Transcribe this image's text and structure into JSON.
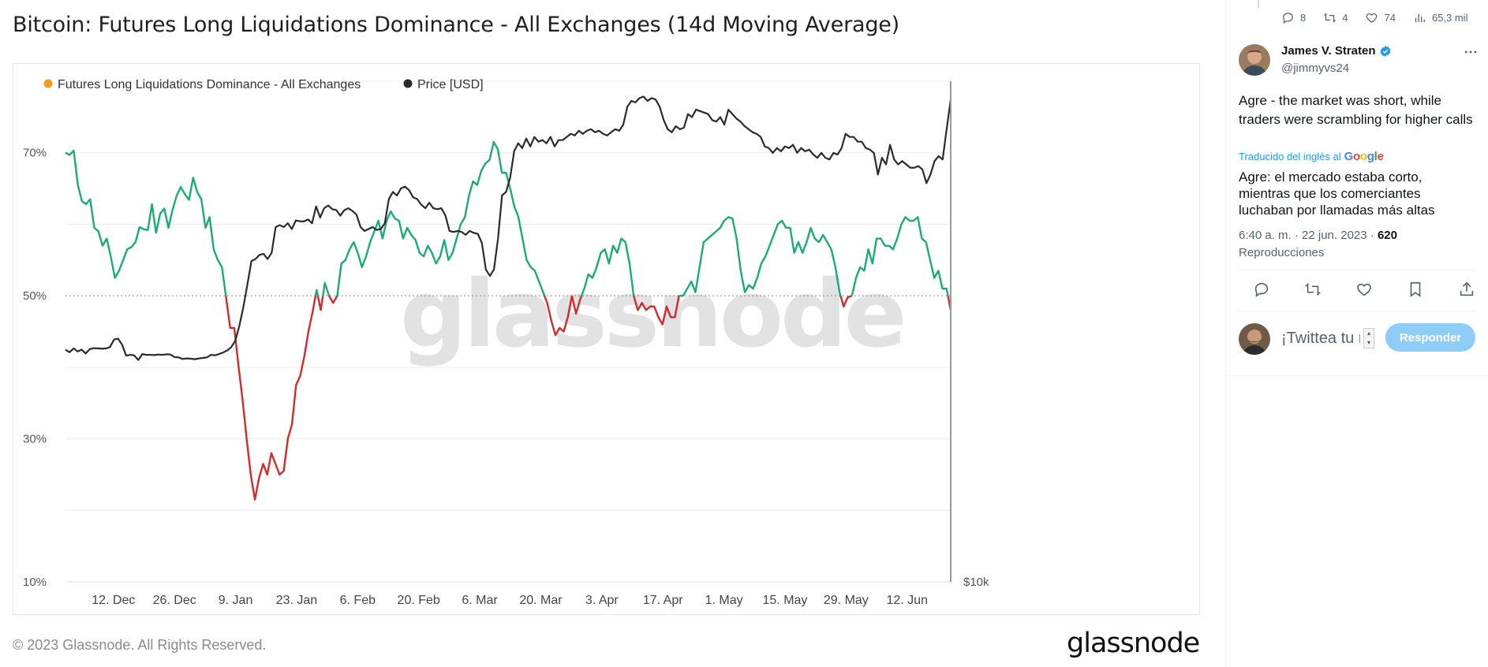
{
  "chart_panel": {
    "title": "Bitcoin: Futures Long Liquidations Dominance - All Exchanges (14d Moving Average)",
    "footer_copyright": "© 2023 Glassnode. All Rights Reserved.",
    "footer_logo": "glassnode",
    "watermark": "glassnode"
  },
  "chart_data": {
    "type": "line",
    "title": "Bitcoin: Futures Long Liquidations Dominance - All Exchanges (14d Moving Average)",
    "legend": [
      "Futures Long Liquidations Dominance - All Exchanges",
      "Price [USD]"
    ],
    "legend_placement": "top-left",
    "grid": true,
    "x_ticks": [
      "12. Dec",
      "26. Dec",
      "9. Jan",
      "23. Jan",
      "6. Feb",
      "20. Feb",
      "6. Mar",
      "20. Mar",
      "3. Apr",
      "17. Apr",
      "1. May",
      "15. May",
      "29. May",
      "12. Jun"
    ],
    "x_range": [
      "2022-12-01",
      "2023-06-22"
    ],
    "y_left_ticks": [
      "70%",
      "50%",
      "30%",
      "10%"
    ],
    "y_left_range": [
      10,
      80
    ],
    "y_right_ticks": [
      "$10k"
    ],
    "reference_line": 50,
    "colors": {
      "dominance_above_50": "#1aab76",
      "dominance_below_50": "#d42a2a",
      "price": "#2b2b2b",
      "legend_dominance_dot": "#f59a23",
      "legend_price_dot": "#2b2b2b"
    },
    "series": [
      {
        "name": "Futures Long Liquidations Dominance - All Exchanges",
        "unit": "%",
        "values": [
          70.0,
          69.7,
          70.3,
          65.5,
          63.2,
          62.8,
          63.5,
          59.5,
          59.0,
          57.0,
          58.0,
          55.5,
          52.5,
          53.5,
          55.0,
          56.5,
          56.8,
          57.5,
          59.6,
          59.3,
          59.2,
          62.8,
          58.8,
          61.5,
          62.2,
          59.5,
          62.0,
          64.0,
          65.2,
          64.2,
          63.4,
          66.5,
          64.5,
          63.5,
          59.5,
          61.0,
          56.5,
          55.0,
          54.0,
          49.8,
          45.5,
          45.5,
          40.3,
          35.5,
          30.0,
          25.0,
          21.5,
          24.5,
          26.5,
          25.0,
          28.0,
          26.5,
          25.0,
          25.5,
          30.0,
          32.0,
          37.5,
          38.8,
          41.5,
          45.0,
          47.7,
          50.8,
          48.0,
          51.8,
          50.0,
          49.0,
          50.0,
          54.5,
          55.0,
          56.5,
          57.5,
          56.0,
          54.0,
          55.5,
          57.5,
          59.0,
          60.5,
          58.0,
          60.5,
          61.8,
          60.8,
          60.5,
          58.0,
          59.5,
          58.5,
          57.8,
          56.0,
          55.5,
          57.0,
          56.0,
          54.5,
          55.5,
          57.8,
          55.0,
          56.0,
          58.0,
          60.0,
          61.0,
          64.0,
          66.0,
          65.5,
          67.5,
          68.5,
          69.0,
          71.5,
          70.5,
          67.2,
          67.2,
          65.0,
          62.5,
          61.0,
          58.0,
          55.0,
          54.0,
          53.5,
          52.0,
          50.5,
          49.0,
          46.5,
          44.5,
          45.5,
          45.0,
          47.0,
          50.0,
          47.5,
          49.5,
          51.0,
          53.0,
          52.5,
          54.0,
          56.0,
          56.5,
          54.5,
          57.0,
          56.0,
          58.0,
          57.5,
          54.5,
          50.0,
          48.0,
          49.0,
          48.0,
          48.5,
          48.5,
          47.0,
          46.0,
          48.5,
          47.0,
          47.0,
          50.0,
          50.0,
          51.0,
          52.0,
          50.5,
          54.0,
          57.5,
          58.0,
          58.5,
          59.0,
          59.5,
          60.5,
          61.0,
          60.8,
          58.0,
          53.5,
          50.5,
          51.5,
          51.0,
          52.5,
          54.5,
          55.5,
          57.0,
          58.5,
          60.0,
          60.5,
          59.5,
          59.5,
          56.0,
          57.5,
          56.0,
          57.5,
          59.5,
          58.0,
          57.5,
          58.5,
          57.5,
          56.5,
          54.0,
          50.5,
          48.5,
          49.8,
          50.0,
          52.5,
          54.0,
          53.5,
          56.5,
          54.5,
          58.0,
          58.0,
          57.0,
          57.0,
          56.5,
          58.0,
          60.0,
          61.0,
          60.5,
          60.5,
          61.0,
          58.0,
          57.5,
          55.0,
          52.5,
          53.5,
          51.0,
          51.0,
          48.0
        ]
      },
      {
        "name": "Price [USD]",
        "unit": "USD",
        "values": [
          17050,
          16950,
          17100,
          16980,
          17050,
          16900,
          17070,
          17110,
          17100,
          17090,
          17100,
          17150,
          17450,
          17490,
          17250,
          16820,
          16850,
          16830,
          16650,
          16880,
          16850,
          16850,
          16840,
          16860,
          16850,
          16870,
          16860,
          16760,
          16750,
          16690,
          16710,
          16700,
          16680,
          16710,
          16730,
          16750,
          16850,
          16830,
          16880,
          16940,
          17020,
          17150,
          17400,
          18000,
          18800,
          19800,
          20900,
          21000,
          21200,
          21250,
          21000,
          21300,
          22600,
          22700,
          22600,
          22800,
          22500,
          22950,
          22900,
          22900,
          23000,
          22800,
          23700,
          23100,
          23600,
          23750,
          23550,
          23500,
          23200,
          23500,
          23600,
          23450,
          23250,
          22600,
          22400,
          22500,
          22600,
          22450,
          22500,
          22800,
          24100,
          24500,
          24300,
          24700,
          24800,
          24600,
          24200,
          24100,
          23800,
          23600,
          23900,
          23600,
          23550,
          23600,
          23200,
          22400,
          22350,
          22400,
          22350,
          22200,
          22400,
          22300,
          22250,
          21800,
          20500,
          20200,
          20500,
          22000,
          24300,
          24500,
          25300,
          26900,
          27400,
          27100,
          27700,
          27200,
          27800,
          27500,
          27600,
          27400,
          27800,
          27200,
          27600,
          27600,
          27800,
          28000,
          27900,
          28200,
          28000,
          28200,
          28300,
          28100,
          28200,
          28000,
          27900,
          28100,
          28300,
          28200,
          28600,
          29800,
          30200,
          30100,
          30400,
          30500,
          30200,
          30400,
          30300,
          29800,
          28900,
          28300,
          28100,
          28500,
          28300,
          28400,
          29300,
          29100,
          29600,
          29500,
          29400,
          29300,
          28900,
          28800,
          29100,
          28600,
          29600,
          29300,
          29000,
          28800,
          28500,
          28300,
          28100,
          28000,
          27800,
          27200,
          27100,
          26800,
          27100,
          26900,
          27200,
          27100,
          27300,
          26800,
          27100,
          26900,
          27000,
          26700,
          26500,
          26800,
          26500,
          26400,
          26800,
          26700,
          27100,
          28000,
          27800,
          27800,
          27500,
          27500,
          27100,
          27000,
          26800,
          25500,
          26500,
          26100,
          27300,
          26400,
          26100,
          26300,
          26100,
          25900,
          25900,
          26000,
          25800,
          25000,
          25500,
          26300,
          26600,
          26400,
          28300,
          30300
        ]
      }
    ]
  },
  "tweet": {
    "stats": {
      "replies": "8",
      "retweets": "4",
      "likes": "74",
      "views": "65,3 mil"
    },
    "author_name": "James V. Straten",
    "author_handle": "@jimmyvs24",
    "text": "Agre - the market was short, while traders were scrambling for higher calls",
    "translated_prefix": "Traducido del inglés al",
    "translated_brand": "Google",
    "translation": "Agre: el mercado estaba corto, mientras que los comerciantes luchaban por llamadas más altas",
    "timestamp": "6:40 a. m. · 22 jun. 2023 ·",
    "views_count": "620",
    "views_label": "Reproducciones",
    "reply_placeholder": "¡Twittea tu respuesta!",
    "reply_button": "Responder",
    "icons": [
      "reply-icon",
      "retweet-icon",
      "like-icon",
      "views-icon",
      "more-icon",
      "verified-icon",
      "bookmark-icon",
      "share-icon"
    ],
    "colors": {
      "accent": "#1d9bf0",
      "button_disabled": "#8ecdf8"
    }
  }
}
